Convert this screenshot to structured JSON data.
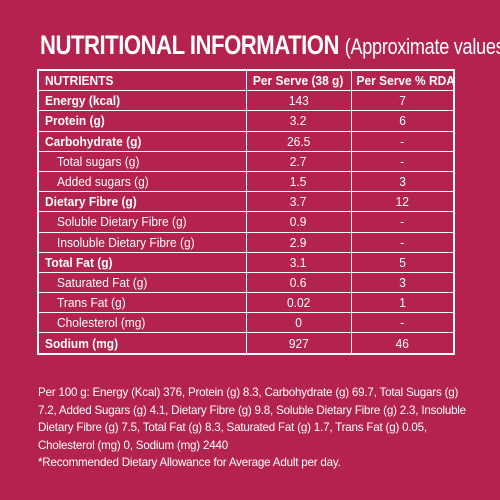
{
  "title": {
    "main": "NUTRITIONAL INFORMATION",
    "sub": "(Approximate values)"
  },
  "table": {
    "headers": [
      "NUTRIENTS",
      "Per Serve (38 g)",
      "Per Serve % RDA*"
    ],
    "rows": [
      {
        "name": "Energy (kcal)",
        "per_serve": "143",
        "rda": "7",
        "bold": true,
        "sub": false
      },
      {
        "name": "Protein (g)",
        "per_serve": "3.2",
        "rda": "6",
        "bold": true,
        "sub": false
      },
      {
        "name": "Carbohydrate (g)",
        "per_serve": "26.5",
        "rda": "-",
        "bold": true,
        "sub": false
      },
      {
        "name": "Total sugars (g)",
        "per_serve": "2.7",
        "rda": "-",
        "bold": false,
        "sub": true
      },
      {
        "name": "Added sugars (g)",
        "per_serve": "1.5",
        "rda": "3",
        "bold": false,
        "sub": true
      },
      {
        "name": "Dietary Fibre (g)",
        "per_serve": "3.7",
        "rda": "12",
        "bold": true,
        "sub": false
      },
      {
        "name": "Soluble Dietary Fibre (g)",
        "per_serve": "0.9",
        "rda": "-",
        "bold": false,
        "sub": true
      },
      {
        "name": "Insoluble Dietary Fibre (g)",
        "per_serve": "2.9",
        "rda": "-",
        "bold": false,
        "sub": true
      },
      {
        "name": "Total Fat (g)",
        "per_serve": "3.1",
        "rda": "5",
        "bold": true,
        "sub": false
      },
      {
        "name": "Saturated Fat (g)",
        "per_serve": "0.6",
        "rda": "3",
        "bold": false,
        "sub": true
      },
      {
        "name": "Trans Fat (g)",
        "per_serve": "0.02",
        "rda": "1",
        "bold": false,
        "sub": true
      },
      {
        "name": "Cholesterol (mg)",
        "per_serve": "0",
        "rda": "-",
        "bold": false,
        "sub": true
      },
      {
        "name": "Sodium (mg)",
        "per_serve": "927",
        "rda": "46",
        "bold": true,
        "sub": false
      }
    ]
  },
  "footnotes": {
    "per100g": "Per 100 g: Energy (Kcal) 376, Protein (g) 8.3, Carbohydrate (g) 69.7, Total Sugars (g) 7.2, Added Sugars (g) 4.1, Dietary Fibre (g) 9.8, Soluble Dietary Fibre (g) 2.3, Insoluble Dietary Fibre (g) 7.5, Total Fat (g) 8.3, Saturated Fat (g) 1.7, Trans Fat (g) 0.05, Cholesterol (mg) 0, Sodium (mg) 2440",
    "rda_note": "*Recommended Dietary Allowance for Average Adult per day."
  },
  "colors": {
    "background": "#b42350",
    "text": "#ffffff"
  }
}
